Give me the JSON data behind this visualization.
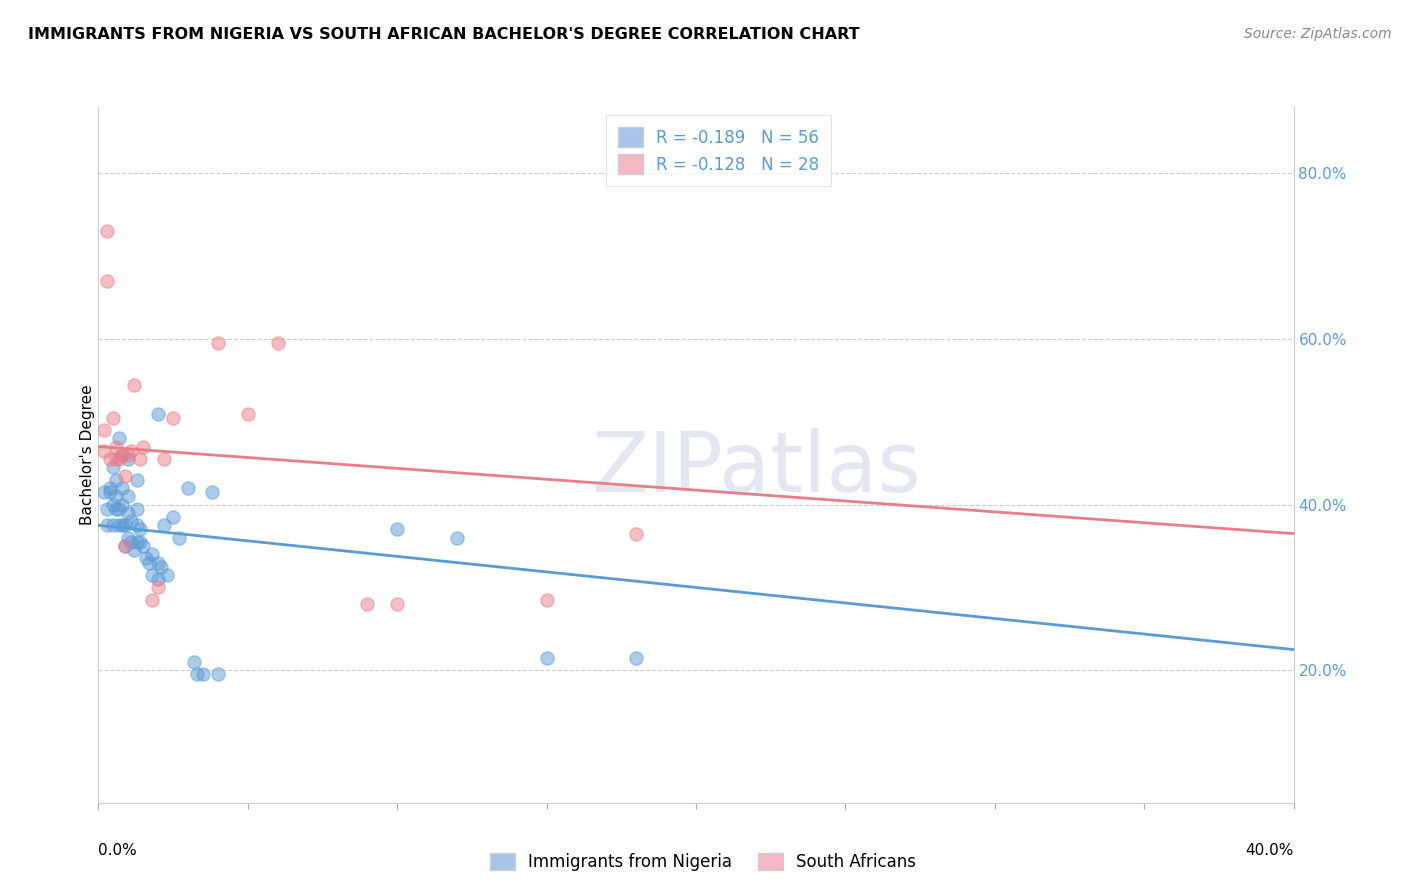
{
  "title": "IMMIGRANTS FROM NIGERIA VS SOUTH AFRICAN BACHELOR'S DEGREE CORRELATION CHART",
  "source": "Source: ZipAtlas.com",
  "ylabel": "Bachelor's Degree",
  "right_yticks": [
    "20.0%",
    "40.0%",
    "60.0%",
    "80.0%"
  ],
  "right_ytick_vals": [
    0.2,
    0.4,
    0.6,
    0.8
  ],
  "xlim": [
    0.0,
    0.4
  ],
  "ylim": [
    0.04,
    0.88
  ],
  "legend_entries": [
    {
      "label": "R = -0.189   N = 56",
      "facecolor": "#aac4e8",
      "edgecolor": "#aac4e8"
    },
    {
      "label": "R = -0.128   N = 28",
      "facecolor": "#f5b8c4",
      "edgecolor": "#f5b8c4"
    }
  ],
  "bottom_legend": [
    {
      "label": "Immigrants from Nigeria",
      "facecolor": "#aac4e8",
      "edgecolor": "#aac4e8"
    },
    {
      "label": "South Africans",
      "facecolor": "#f5b8c4",
      "edgecolor": "#f5b8c4"
    }
  ],
  "nigeria_scatter": [
    [
      0.002,
      0.415
    ],
    [
      0.003,
      0.395
    ],
    [
      0.003,
      0.375
    ],
    [
      0.004,
      0.415
    ],
    [
      0.004,
      0.42
    ],
    [
      0.005,
      0.445
    ],
    [
      0.005,
      0.4
    ],
    [
      0.005,
      0.375
    ],
    [
      0.006,
      0.43
    ],
    [
      0.006,
      0.41
    ],
    [
      0.006,
      0.395
    ],
    [
      0.007,
      0.48
    ],
    [
      0.007,
      0.395
    ],
    [
      0.007,
      0.375
    ],
    [
      0.008,
      0.46
    ],
    [
      0.008,
      0.42
    ],
    [
      0.008,
      0.4
    ],
    [
      0.008,
      0.375
    ],
    [
      0.009,
      0.375
    ],
    [
      0.009,
      0.35
    ],
    [
      0.01,
      0.455
    ],
    [
      0.01,
      0.41
    ],
    [
      0.01,
      0.39
    ],
    [
      0.01,
      0.36
    ],
    [
      0.011,
      0.38
    ],
    [
      0.011,
      0.355
    ],
    [
      0.012,
      0.345
    ],
    [
      0.013,
      0.43
    ],
    [
      0.013,
      0.395
    ],
    [
      0.013,
      0.375
    ],
    [
      0.013,
      0.355
    ],
    [
      0.014,
      0.37
    ],
    [
      0.014,
      0.355
    ],
    [
      0.015,
      0.35
    ],
    [
      0.016,
      0.335
    ],
    [
      0.017,
      0.33
    ],
    [
      0.018,
      0.34
    ],
    [
      0.018,
      0.315
    ],
    [
      0.02,
      0.51
    ],
    [
      0.02,
      0.33
    ],
    [
      0.02,
      0.31
    ],
    [
      0.021,
      0.325
    ],
    [
      0.022,
      0.375
    ],
    [
      0.023,
      0.315
    ],
    [
      0.025,
      0.385
    ],
    [
      0.027,
      0.36
    ],
    [
      0.03,
      0.42
    ],
    [
      0.032,
      0.21
    ],
    [
      0.033,
      0.195
    ],
    [
      0.035,
      0.195
    ],
    [
      0.038,
      0.415
    ],
    [
      0.04,
      0.195
    ],
    [
      0.18,
      0.215
    ],
    [
      0.1,
      0.37
    ],
    [
      0.12,
      0.36
    ],
    [
      0.15,
      0.215
    ]
  ],
  "sa_scatter": [
    [
      0.002,
      0.49
    ],
    [
      0.002,
      0.465
    ],
    [
      0.003,
      0.73
    ],
    [
      0.003,
      0.67
    ],
    [
      0.004,
      0.455
    ],
    [
      0.005,
      0.505
    ],
    [
      0.006,
      0.47
    ],
    [
      0.006,
      0.455
    ],
    [
      0.007,
      0.455
    ],
    [
      0.008,
      0.46
    ],
    [
      0.009,
      0.435
    ],
    [
      0.009,
      0.35
    ],
    [
      0.01,
      0.46
    ],
    [
      0.011,
      0.465
    ],
    [
      0.012,
      0.545
    ],
    [
      0.014,
      0.455
    ],
    [
      0.015,
      0.47
    ],
    [
      0.018,
      0.285
    ],
    [
      0.02,
      0.3
    ],
    [
      0.022,
      0.455
    ],
    [
      0.025,
      0.505
    ],
    [
      0.04,
      0.595
    ],
    [
      0.05,
      0.51
    ],
    [
      0.06,
      0.595
    ],
    [
      0.09,
      0.28
    ],
    [
      0.1,
      0.28
    ],
    [
      0.15,
      0.285
    ],
    [
      0.18,
      0.365
    ]
  ],
  "nigeria_line": {
    "x": [
      0.0,
      0.4
    ],
    "y": [
      0.375,
      0.225
    ]
  },
  "sa_line": {
    "x": [
      0.0,
      0.4
    ],
    "y": [
      0.47,
      0.365
    ]
  },
  "nigeria_color": "#5b9bd5",
  "sa_color": "#e87e8a",
  "scatter_alpha": 0.5,
  "scatter_size": 90,
  "watermark_text": "ZIPatlas",
  "background_color": "#ffffff",
  "grid_color": "#cccccc",
  "title_fontsize": 12,
  "right_tick_color": "#5b9bd5"
}
